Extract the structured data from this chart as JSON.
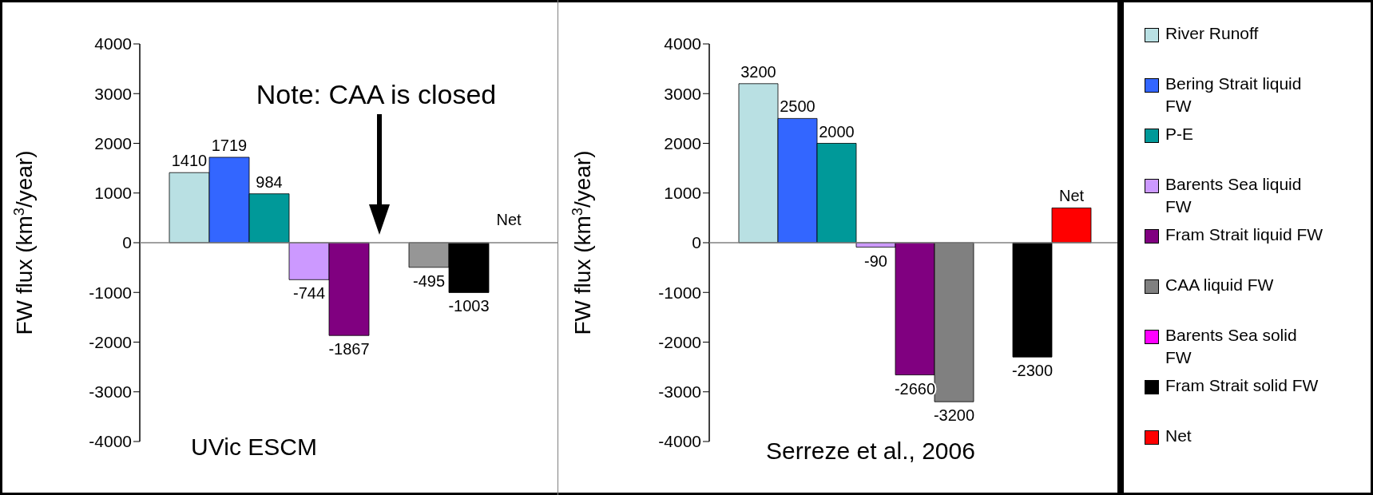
{
  "chart_data": [
    {
      "type": "bar",
      "categories": [
        null
      ],
      "ylabel": "FW flux (km$^{3}$/year)",
      "ylim": [
        -4000,
        4000
      ],
      "yticks": [
        -4000,
        -3000,
        -2000,
        -1000,
        0,
        1000,
        2000,
        3000,
        4000
      ],
      "legend": false,
      "annotations": [
        "Note: CAA is closed",
        "UVic ESCM"
      ],
      "series": [
        {
          "color": "#b9e0e3",
          "values": [
            1410
          ],
          "value_labels": [
            "1410"
          ]
        },
        {
          "color": "#3366ff",
          "values": [
            1719
          ],
          "value_labels": [
            "1719"
          ]
        },
        {
          "color": "#009999",
          "values": [
            984
          ],
          "value_labels": [
            "984"
          ]
        },
        {
          "color": "#cc99ff",
          "values": [
            -744
          ],
          "value_labels": [
            "-744"
          ]
        },
        {
          "color": "#800080",
          "values": [
            -1867
          ],
          "value_labels": [
            "-1867"
          ]
        },
        {
          "color": "#808080",
          "values": [
            null
          ],
          "value_labels": [
            null
          ]
        },
        {
          "color": "#969696",
          "values": [
            -495
          ],
          "value_labels": [
            "-495"
          ]
        },
        {
          "color": "#000000",
          "values": [
            -1003
          ],
          "value_labels": [
            "-1003"
          ]
        },
        {
          "color": "#ff0000",
          "values": [
            null
          ],
          "value_labels": [
            "Net"
          ]
        }
      ]
    },
    {
      "type": "bar",
      "categories": [
        null
      ],
      "ylabel": "FW flux (km$^{3}$/year)",
      "ylim": [
        -4000,
        4000
      ],
      "yticks": [
        -4000,
        -3000,
        -2000,
        -1000,
        0,
        1000,
        2000,
        3000,
        4000
      ],
      "legend": "right",
      "annotations": [
        "Serreze et al., 2006"
      ],
      "series": [
        {
          "name": "River Runoff",
          "color": "#b9e0e3",
          "values": [
            3200
          ],
          "value_labels": [
            "3200"
          ]
        },
        {
          "name": "Bering Strait liquid FW",
          "color": "#3366ff",
          "values": [
            2500
          ],
          "value_labels": [
            "2500"
          ]
        },
        {
          "name": "P-E",
          "color": "#009999",
          "values": [
            2000
          ],
          "value_labels": [
            "2000"
          ]
        },
        {
          "name": "Barents Sea liquid FW",
          "color": "#cc99ff",
          "values": [
            -90
          ],
          "value_labels": [
            "-90"
          ]
        },
        {
          "name": "Fram Strait liquid FW",
          "color": "#800080",
          "values": [
            -2660
          ],
          "value_labels": [
            "-2660"
          ]
        },
        {
          "name": "CAA liquid FW",
          "color": "#808080",
          "values": [
            -3200
          ],
          "value_labels": [
            "-3200"
          ]
        },
        {
          "name": "Barents Sea solid FW",
          "color": "#ff00ff",
          "values": [
            null
          ],
          "value_labels": [
            null
          ]
        },
        {
          "name": "Fram Strait solid FW",
          "color": "#000000",
          "values": [
            -2300
          ],
          "value_labels": [
            "-2300"
          ]
        },
        {
          "name": "Net",
          "color": "#ff0000",
          "values": [
            700
          ],
          "value_labels": [
            "Net"
          ]
        }
      ]
    }
  ]
}
